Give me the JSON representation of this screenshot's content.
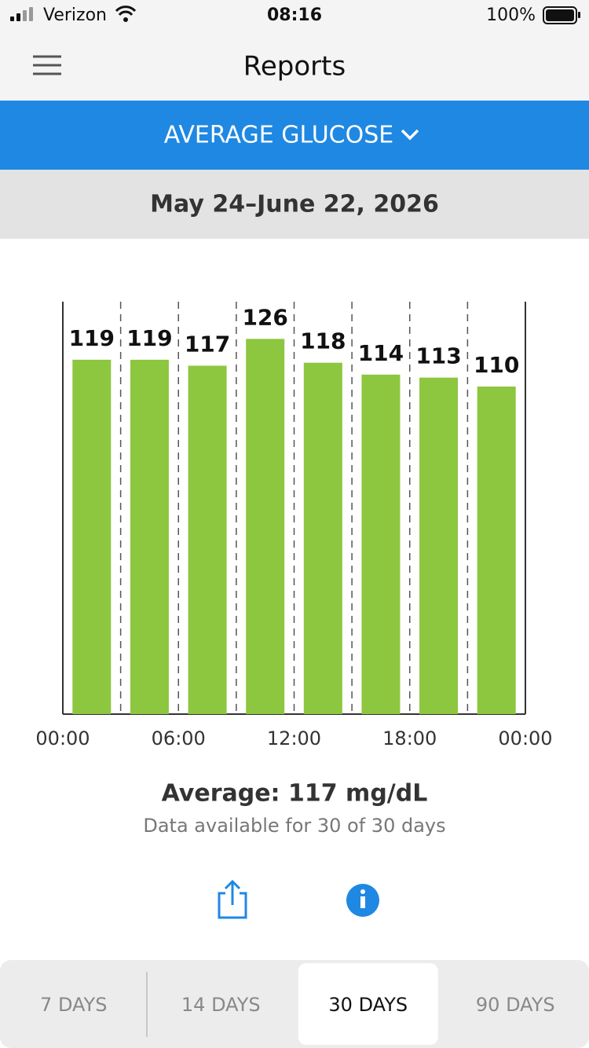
{
  "status_bar": {
    "carrier": "Verizon",
    "time": "08:16",
    "battery": "100%"
  },
  "header": {
    "title": "Reports"
  },
  "report_selector": {
    "label": "AVERAGE GLUCOSE"
  },
  "date_range": "May 24–June 22, 2026",
  "chart_data": {
    "type": "bar",
    "x": [
      1.5,
      4.5,
      7.5,
      10.5,
      13.5,
      16.5,
      19.5,
      22.5
    ],
    "values": [
      119,
      119,
      117,
      126,
      118,
      114,
      113,
      110
    ],
    "color": "#8dc63f",
    "xlim": [
      0,
      24
    ],
    "xticks": [
      {
        "value": 0,
        "label": "00:00"
      },
      {
        "value": 3,
        "label": null
      },
      {
        "value": 6,
        "label": "06:00"
      },
      {
        "value": 9,
        "label": null
      },
      {
        "value": 12,
        "label": "12:00"
      },
      {
        "value": 15,
        "label": null
      },
      {
        "value": 18,
        "label": "18:00"
      },
      {
        "value": 21,
        "label": null
      },
      {
        "value": 24,
        "label": "00:00"
      }
    ],
    "ylim": [
      0,
      138.5
    ],
    "grid": true
  },
  "summary": {
    "average": "Average: 117 mg/dL",
    "availability": "Data available for 30 of 30 days"
  },
  "tabs": {
    "items": [
      "7 DAYS",
      "14 DAYS",
      "30 DAYS",
      "90 DAYS"
    ],
    "selected": 2
  }
}
